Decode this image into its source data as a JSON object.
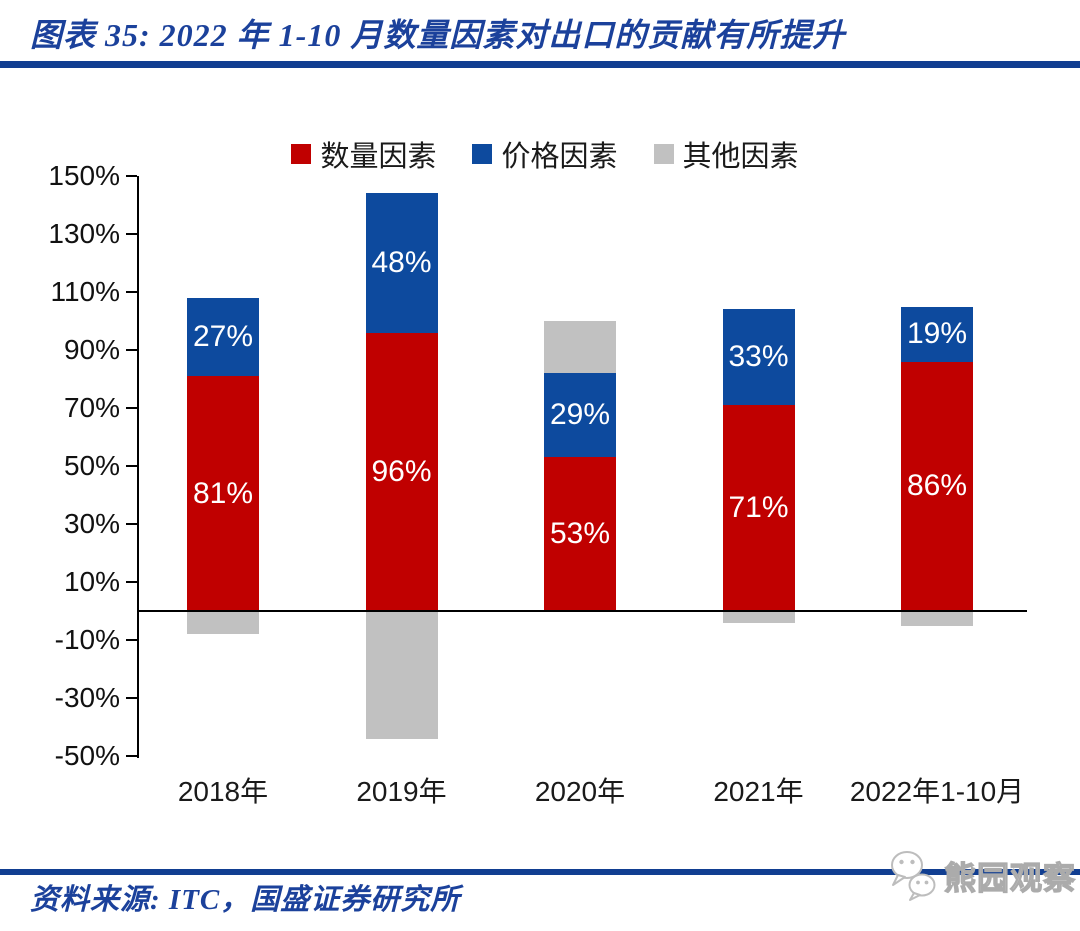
{
  "header": {
    "title": "图表 35: 2022 年 1-10 月数量因素对出口的贡献有所提升"
  },
  "footer": {
    "source": "资料来源: ITC，国盛证券研究所",
    "watermark": "熊园观察"
  },
  "colors": {
    "accent_navy": "#113E91",
    "title_navy": "#1B419B",
    "quantity_red": "#C00000",
    "price_blue": "#0D4A9E",
    "other_gray": "#C1C1C1",
    "axis_black": "#000000",
    "bar_label_white": "#FFFFFF"
  },
  "chart_data": {
    "type": "bar",
    "stacked": true,
    "grid": false,
    "legend_position": "top",
    "categories": [
      "2018年",
      "2019年",
      "2020年",
      "2021年",
      "2022年1-10月"
    ],
    "series": [
      {
        "key": "quantity",
        "name": "数量因素",
        "color": "#C00000",
        "values": [
          81,
          96,
          53,
          71,
          86
        ],
        "data_labels": [
          "81%",
          "96%",
          "53%",
          "71%",
          "86%"
        ]
      },
      {
        "key": "price",
        "name": "价格因素",
        "color": "#0D4A9E",
        "values": [
          27,
          48,
          29,
          33,
          19
        ],
        "data_labels": [
          "27%",
          "48%",
          "29%",
          "33%",
          "19%"
        ]
      },
      {
        "key": "other",
        "name": "其他因素",
        "color": "#C1C1C1",
        "values": [
          -8,
          -44,
          18,
          -4,
          -5
        ],
        "data_labels": [
          "",
          "",
          "",
          "",
          ""
        ]
      }
    ],
    "ylim": [
      -50,
      150
    ],
    "ytick_step": 20,
    "ytick_labels": [
      "150%",
      "130%",
      "110%",
      "90%",
      "70%",
      "50%",
      "30%",
      "10%",
      "-10%",
      "-30%",
      "-50%"
    ],
    "ylabel": "",
    "xlabel": ""
  }
}
